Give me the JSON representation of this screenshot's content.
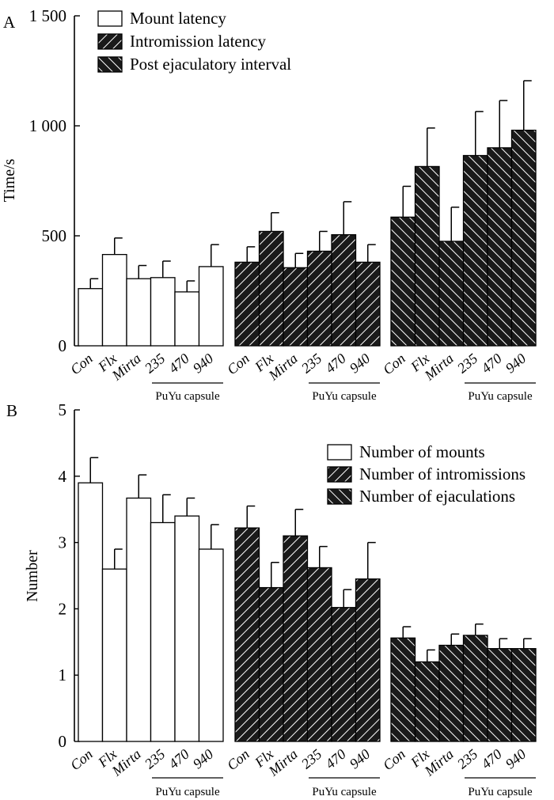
{
  "chart_data": [
    {
      "panel_label": "A",
      "type": "bar",
      "ylabel": "Time/s",
      "ylim": [
        0,
        1500
      ],
      "yticks": [
        0,
        500,
        1000,
        1500
      ],
      "ytick_labels": [
        "0",
        "500",
        "1 000",
        "1 500"
      ],
      "categories": [
        "Con",
        "Flx",
        "Mirta",
        "235",
        "470",
        "940"
      ],
      "group_label": "PuYu capsule",
      "legend_position": "top-left",
      "series": [
        {
          "name": "Mount latency",
          "pattern": "open",
          "values": [
            260,
            415,
            305,
            310,
            245,
            360
          ],
          "errors": [
            45,
            75,
            60,
            75,
            50,
            100
          ]
        },
        {
          "name": "Intromission latency",
          "pattern": "right-hatch",
          "values": [
            380,
            520,
            355,
            430,
            505,
            380
          ],
          "errors": [
            70,
            85,
            65,
            90,
            150,
            80
          ]
        },
        {
          "name": "Post ejaculatory interval",
          "pattern": "left-hatch",
          "values": [
            585,
            815,
            475,
            865,
            900,
            980
          ],
          "errors": [
            140,
            175,
            155,
            200,
            215,
            225
          ]
        }
      ]
    },
    {
      "panel_label": "B",
      "type": "bar",
      "ylabel": "Number",
      "ylim": [
        0,
        5
      ],
      "yticks": [
        0,
        1,
        2,
        3,
        4,
        5
      ],
      "ytick_labels": [
        "0",
        "1",
        "2",
        "3",
        "4",
        "5"
      ],
      "categories": [
        "Con",
        "Flx",
        "Mirta",
        "235",
        "470",
        "940"
      ],
      "group_label": "PuYu capsule",
      "legend_position": "top-right",
      "series": [
        {
          "name": "Number of mounts",
          "pattern": "open",
          "values": [
            3.9,
            2.6,
            3.67,
            3.3,
            3.4,
            2.9
          ],
          "errors": [
            0.38,
            0.3,
            0.35,
            0.42,
            0.27,
            0.37
          ]
        },
        {
          "name": "Number of intromissions",
          "pattern": "right-hatch",
          "values": [
            3.22,
            2.32,
            3.1,
            2.62,
            2.02,
            2.45
          ],
          "errors": [
            0.33,
            0.38,
            0.4,
            0.32,
            0.27,
            0.55
          ]
        },
        {
          "name": "Number of ejaculations",
          "pattern": "left-hatch",
          "values": [
            1.56,
            1.2,
            1.45,
            1.6,
            1.4,
            1.4
          ],
          "errors": [
            0.17,
            0.18,
            0.17,
            0.17,
            0.15,
            0.15
          ]
        }
      ]
    }
  ]
}
